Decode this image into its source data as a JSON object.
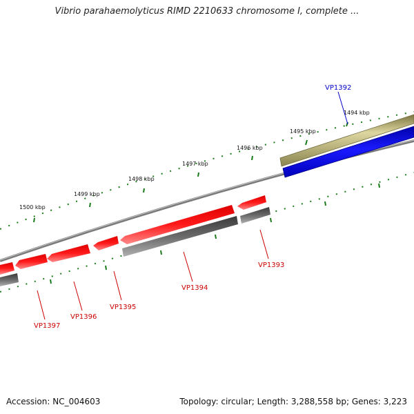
{
  "title": "Vibrio parahaemolyticus RIMD 2210633 chromosome I, complete ...",
  "footer": {
    "accession": "Accession: NC_004603",
    "summary": "Topology: circular; Length: 3,288,558 bp; Genes: 3,223"
  },
  "scale_labels": [
    "1494 kbp",
    "1495 kbp",
    "1496 kbp",
    "1497 kbp",
    "1498 kbp",
    "1499 kbp",
    "1500 kbp"
  ],
  "genes": [
    {
      "label": "VP1392",
      "color": "#0000cc"
    },
    {
      "label": "VP1393",
      "color": "#cc0000"
    },
    {
      "label": "VP1394",
      "color": "#cc0000"
    },
    {
      "label": "VP1395",
      "color": "#cc0000"
    },
    {
      "label": "VP1396",
      "color": "#cc0000"
    },
    {
      "label": "VP1397",
      "color": "#cc0000"
    }
  ],
  "colors": {
    "forward_gene": "#0000ff",
    "forward_feature": "#b8b070",
    "reverse_gene": "#ff0000",
    "reverse_feature": "#666666",
    "backbone": "#7a7a7a",
    "ticks": "#1a7a1a"
  }
}
